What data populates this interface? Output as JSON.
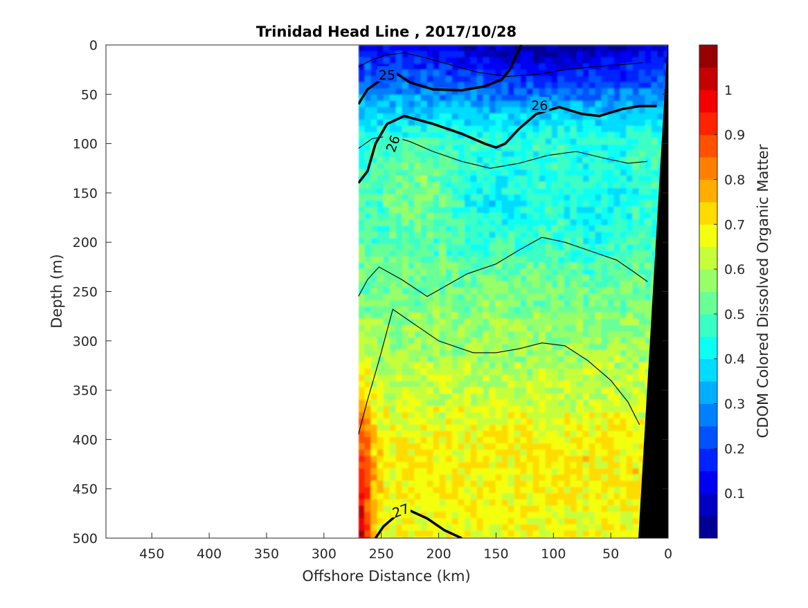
{
  "chart_data": {
    "type": "heatmap",
    "title": "Trinidad Head Line , 2017/10/28",
    "xlabel": "Offshore Distance (km)",
    "ylabel": "Depth (m)",
    "colorbar_label": "CDOM Colored Dissolved Organic Matter",
    "xlim": [
      490,
      0
    ],
    "xticks": [
      450,
      400,
      350,
      300,
      250,
      200,
      150,
      100,
      50,
      0
    ],
    "ylim": [
      0,
      500
    ],
    "yticks": [
      0,
      50,
      100,
      150,
      200,
      250,
      300,
      350,
      400,
      450,
      500
    ],
    "clim": [
      0,
      1.1
    ],
    "cticks": [
      0.1,
      0.2,
      0.3,
      0.4,
      0.5,
      0.6,
      0.7,
      0.8,
      0.9,
      1
    ],
    "colormap": "jet",
    "data_extent_km": [
      270,
      0
    ],
    "pattern": "CDOM low (0.1-0.3) near surface 0-70 m between 150 and 0 km, about 0.4-0.5 from 70-250 m, 0.5-0.7 deeper, with local maxima near 1.0 at 270 km below 300 m.",
    "cdom_profile": [
      {
        "depth": 10,
        "value": 0.16
      },
      {
        "depth": 50,
        "value": 0.3
      },
      {
        "depth": 100,
        "value": 0.46
      },
      {
        "depth": 200,
        "value": 0.5
      },
      {
        "depth": 300,
        "value": 0.58
      },
      {
        "depth": 400,
        "value": 0.64
      },
      {
        "depth": 500,
        "value": 0.66
      }
    ],
    "isopycnals": [
      {
        "label": "25",
        "x": [
          270,
          262,
          250,
          238,
          225,
          205,
          180,
          160,
          145,
          138,
          133,
          128
        ],
        "y": [
          60,
          45,
          35,
          28,
          38,
          45,
          46,
          42,
          35,
          25,
          12,
          0
        ]
      },
      {
        "label": "26",
        "x": [
          270,
          262,
          255,
          245,
          230,
          205,
          180,
          160,
          150,
          142,
          130,
          115,
          95,
          75,
          60,
          40,
          25,
          10
        ],
        "y": [
          140,
          128,
          100,
          80,
          72,
          80,
          90,
          100,
          104,
          100,
          85,
          70,
          63,
          70,
          72,
          65,
          62,
          62
        ]
      },
      {
        "label": "27",
        "x": [
          255,
          248,
          238,
          225,
          210,
          195,
          180
        ],
        "y": [
          500,
          488,
          478,
          472,
          480,
          492,
          500
        ]
      }
    ],
    "thin_contours": [
      {
        "x": [
          270,
          262,
          252,
          232,
          210,
          175,
          150,
          130,
          110,
          90,
          65,
          45,
          30,
          18
        ],
        "y": [
          255,
          238,
          225,
          238,
          255,
          232,
          222,
          208,
          195,
          200,
          210,
          218,
          230,
          240
        ]
      },
      {
        "x": [
          270,
          262,
          252,
          240,
          225,
          200,
          170,
          150,
          130,
          110,
          90,
          70,
          50,
          35,
          25
        ],
        "y": [
          395,
          360,
          320,
          268,
          280,
          300,
          312,
          312,
          308,
          302,
          305,
          320,
          340,
          362,
          385
        ]
      },
      {
        "x": [
          270,
          258,
          245,
          230,
          215,
          190,
          165,
          140,
          115,
          90,
          65,
          40,
          22
        ],
        "y": [
          22,
          15,
          10,
          8,
          12,
          20,
          28,
          32,
          30,
          25,
          22,
          20,
          18
        ]
      },
      {
        "x": [
          270,
          258,
          242,
          225,
          205,
          180,
          155,
          130,
          105,
          80,
          55,
          35,
          18
        ],
        "y": [
          105,
          95,
          92,
          98,
          108,
          118,
          125,
          120,
          112,
          108,
          115,
          120,
          118
        ]
      }
    ]
  }
}
